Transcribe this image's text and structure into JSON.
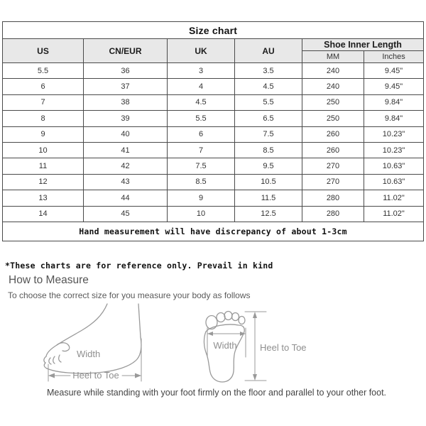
{
  "size_chart": {
    "title": "Size chart",
    "columns": [
      "US",
      "CN/EUR",
      "UK",
      "AU"
    ],
    "inner_length_header": "Shoe Inner Length",
    "inner_length_subcolumns": [
      "MM",
      "Inches"
    ],
    "rows": [
      [
        "5.5",
        "36",
        "3",
        "3.5",
        "240",
        "9.45\""
      ],
      [
        "6",
        "37",
        "4",
        "4.5",
        "240",
        "9.45\""
      ],
      [
        "7",
        "38",
        "4.5",
        "5.5",
        "250",
        "9.84\""
      ],
      [
        "8",
        "39",
        "5.5",
        "6.5",
        "250",
        "9.84\""
      ],
      [
        "9",
        "40",
        "6",
        "7.5",
        "260",
        "10.23\""
      ],
      [
        "10",
        "41",
        "7",
        "8.5",
        "260",
        "10.23\""
      ],
      [
        "11",
        "42",
        "7.5",
        "9.5",
        "270",
        "10.63\""
      ],
      [
        "12",
        "43",
        "8.5",
        "10.5",
        "270",
        "10.63\""
      ],
      [
        "13",
        "44",
        "9",
        "11.5",
        "280",
        "11.02\""
      ],
      [
        "14",
        "45",
        "10",
        "12.5",
        "280",
        "11.02\""
      ]
    ],
    "footnote": "Hand measurement will have discrepancy of about 1-3cm"
  },
  "notes": {
    "reference_note": "*These charts are for reference only. Prevail in kind"
  },
  "how_to_measure": {
    "heading": "How to Measure",
    "subheading": "To choose the correct size for you measure your body as follows",
    "side_foot": {
      "width_label": "Width",
      "heel_to_toe_label": "Heel to Toe"
    },
    "top_foot": {
      "width_label": "Width",
      "heel_to_toe_label": "Heel to Toe"
    },
    "caption": "Measure while standing with your foot firmly on the floor and parallel to your other foot."
  },
  "colors": {
    "header_bg": "#e8e8e8",
    "table_border": "#4a4a4a",
    "table_text": "#333333",
    "diagram_line": "#999999",
    "diagram_label": "#8f8f8f"
  }
}
